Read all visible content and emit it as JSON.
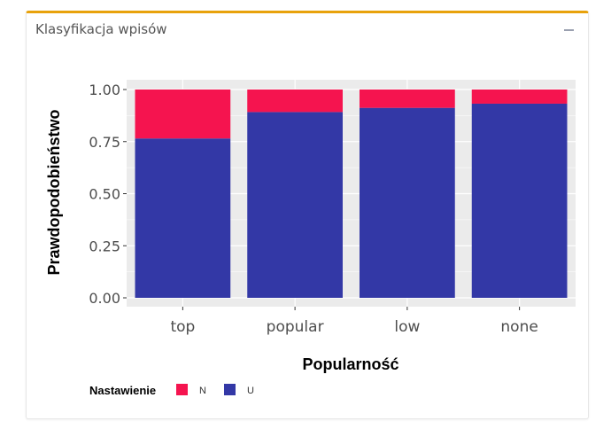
{
  "panel": {
    "title": "Klasyfikacja wpisów"
  },
  "colors": {
    "panel_accent": "#e8a20c",
    "plot_background": "#ebebeb",
    "gridline": "#ffffff",
    "series_N": "#f5144f",
    "series_U": "#3338a6"
  },
  "chart_data": {
    "type": "bar",
    "stacked": true,
    "categories": [
      "top",
      "popular",
      "low",
      "none"
    ],
    "series": [
      {
        "name": "N",
        "values": [
          0.235,
          0.108,
          0.088,
          0.068
        ],
        "color": "#f5144f"
      },
      {
        "name": "U",
        "values": [
          0.765,
          0.892,
          0.912,
          0.932
        ],
        "color": "#3338a6"
      }
    ],
    "ylim": [
      0,
      1
    ],
    "y_ticks": [
      "0.00",
      "0.25",
      "0.50",
      "0.75",
      "1.00"
    ],
    "xlabel": "Popularność",
    "ylabel": "Prawdopodobieństwo",
    "legend": {
      "title": "Nastawienie",
      "position": "bottom-left",
      "entries": [
        "N",
        "U"
      ]
    },
    "grid": true
  }
}
